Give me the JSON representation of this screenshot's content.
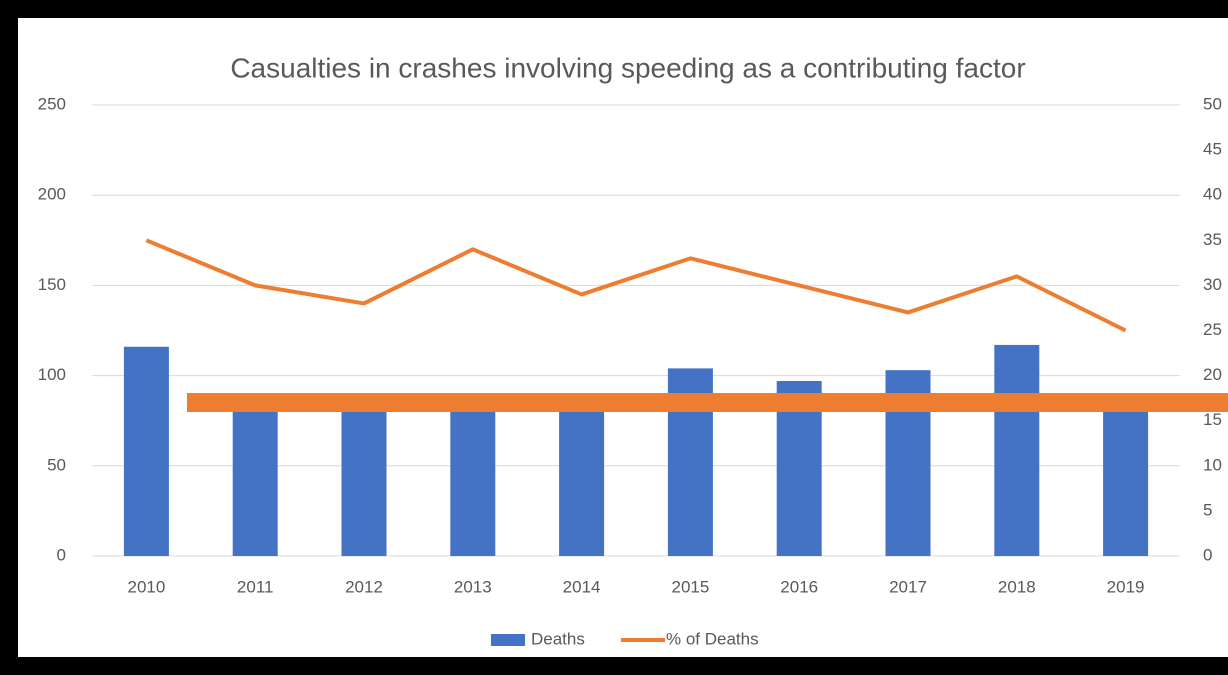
{
  "chart_data": {
    "type": "bar-line",
    "title": "Casualties in crashes involving speeding as a contributing factor",
    "categories": [
      "2010",
      "2011",
      "2012",
      "2013",
      "2014",
      "2015",
      "2016",
      "2017",
      "2018",
      "2019"
    ],
    "series": [
      {
        "name": "Deaths",
        "color": "#4472c4",
        "type": "bar",
        "values": [
          116,
          88,
          88,
          88,
          88,
          104,
          97,
          103,
          117,
          88
        ]
      },
      {
        "name": "% of Deaths",
        "color": "#ed7d31",
        "type": "line",
        "axis": "y2",
        "values": [
          35,
          30,
          28,
          34,
          29,
          33,
          30,
          27,
          31,
          25
        ]
      }
    ],
    "ylim": [
      0,
      250
    ],
    "yticks": [
      0,
      50,
      100,
      150,
      200,
      250
    ],
    "y2lim": [
      0,
      50
    ],
    "y2ticks": [
      0,
      5,
      10,
      15,
      20,
      25,
      30,
      35,
      40,
      45,
      50
    ],
    "grid": true,
    "legend": "bottom"
  }
}
